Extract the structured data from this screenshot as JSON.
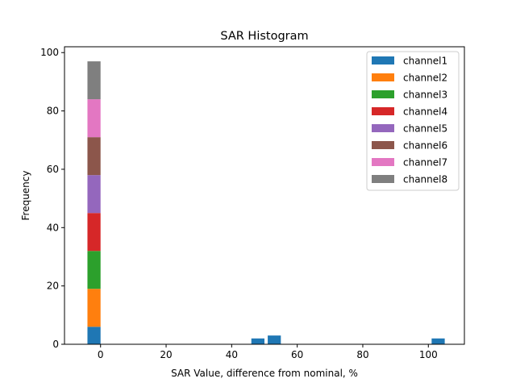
{
  "chart_data": {
    "type": "bar",
    "stacked": true,
    "title": "SAR Histogram",
    "xlabel": "SAR Value, difference from nominal, %",
    "ylabel": "Frequency",
    "xlim": [
      -11,
      111
    ],
    "ylim": [
      0,
      102
    ],
    "xticks": [
      0,
      20,
      40,
      60,
      80,
      100
    ],
    "yticks": [
      0,
      20,
      40,
      60,
      80,
      100
    ],
    "bar_width": 4,
    "legend_position": "upper right",
    "series": [
      {
        "name": "channel1",
        "color": "#1f77b4",
        "bars": [
          {
            "x": -2,
            "value": 6
          },
          {
            "x": 48,
            "value": 2
          },
          {
            "x": 53,
            "value": 3
          },
          {
            "x": 103,
            "value": 2
          }
        ]
      },
      {
        "name": "channel2",
        "color": "#ff7f0e",
        "bars": [
          {
            "x": -2,
            "value": 13
          }
        ]
      },
      {
        "name": "channel3",
        "color": "#2ca02c",
        "bars": [
          {
            "x": -2,
            "value": 13
          }
        ]
      },
      {
        "name": "channel4",
        "color": "#d62728",
        "bars": [
          {
            "x": -2,
            "value": 13
          }
        ]
      },
      {
        "name": "channel5",
        "color": "#9467bd",
        "bars": [
          {
            "x": -2,
            "value": 13
          }
        ]
      },
      {
        "name": "channel6",
        "color": "#8c564b",
        "bars": [
          {
            "x": -2,
            "value": 13
          }
        ]
      },
      {
        "name": "channel7",
        "color": "#e377c2",
        "bars": [
          {
            "x": -2,
            "value": 13
          }
        ]
      },
      {
        "name": "channel8",
        "color": "#7f7f7f",
        "bars": [
          {
            "x": -2,
            "value": 13
          }
        ]
      }
    ]
  }
}
